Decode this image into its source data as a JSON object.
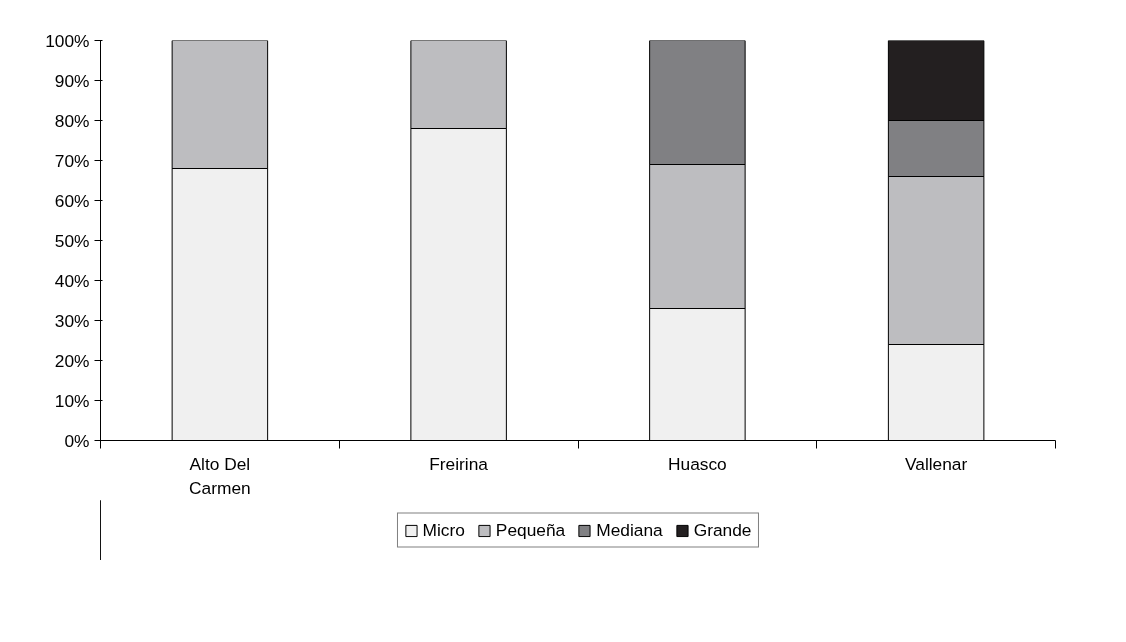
{
  "chart_data": {
    "type": "bar",
    "stacked": true,
    "categories": [
      "Alto Del Carmen",
      "Freirina",
      "Huasco",
      "Vallenar"
    ],
    "series": [
      {
        "name": "Micro",
        "color": "#f0f0f0",
        "values": [
          68,
          78,
          33,
          24
        ]
      },
      {
        "name": "Pequeña",
        "color": "#bdbdc0",
        "values": [
          32,
          22,
          36,
          42
        ]
      },
      {
        "name": "Mediana",
        "color": "#808083",
        "values": [
          0,
          0,
          31,
          14
        ]
      },
      {
        "name": "Grande",
        "color": "#231f20",
        "values": [
          0,
          0,
          0,
          20
        ]
      }
    ],
    "ylim": [
      0,
      100
    ],
    "yticks": [
      {
        "value": 0,
        "label": "0%"
      },
      {
        "value": 10,
        "label": "10%"
      },
      {
        "value": 20,
        "label": "20%"
      },
      {
        "value": 30,
        "label": "30%"
      },
      {
        "value": 40,
        "label": "40%"
      },
      {
        "value": 50,
        "label": "50%"
      },
      {
        "value": 60,
        "label": "60%"
      },
      {
        "value": 70,
        "label": "70%"
      },
      {
        "value": 80,
        "label": "80%"
      },
      {
        "value": 90,
        "label": "90%"
      },
      {
        "value": 100,
        "label": "100%"
      }
    ],
    "grid": false,
    "legend": "bottom"
  }
}
